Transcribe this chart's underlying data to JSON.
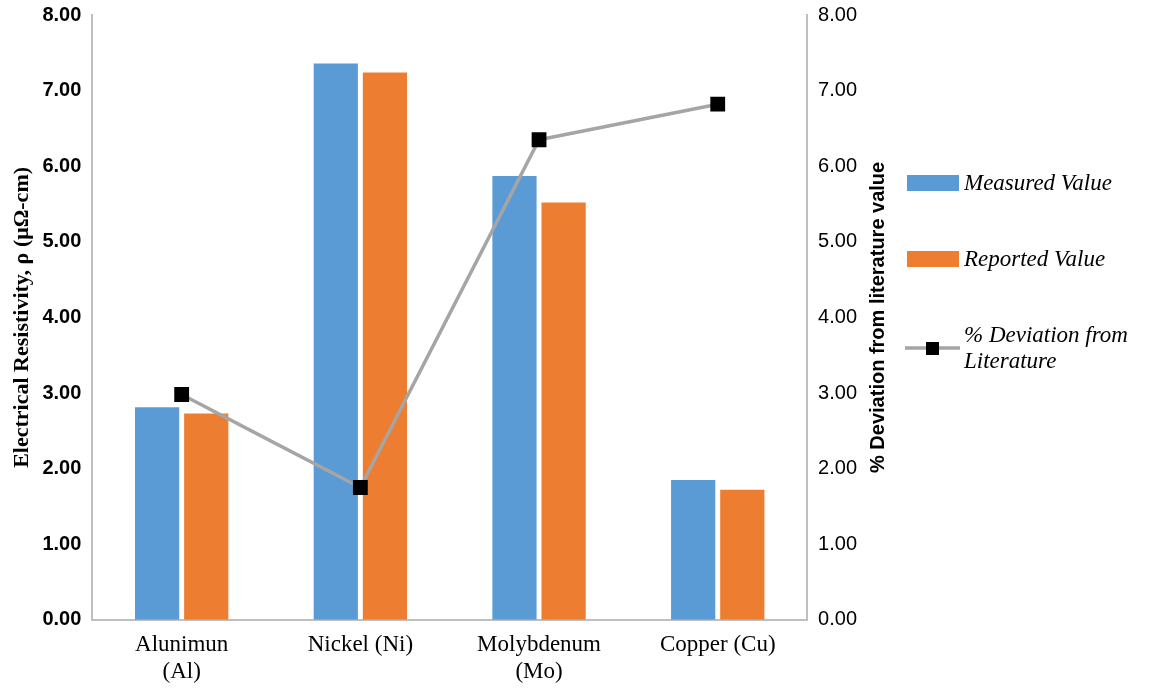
{
  "chart_data": {
    "type": "bar",
    "categories": [
      "Alunimun\n(Al)",
      "Nickel (Ni)",
      "Molybdenum\n(Mo)",
      "Copper (Cu)"
    ],
    "ylabel": "Electrical Resistivity, ρ (μΩ-cm)",
    "y2label": "% Deviation from literature value",
    "ylim": [
      0,
      8
    ],
    "yticks": [
      {
        "value": 0,
        "label": "0.00"
      },
      {
        "value": 1,
        "label": "1.00"
      },
      {
        "value": 2,
        "label": "2.00"
      },
      {
        "value": 3,
        "label": "3.00"
      },
      {
        "value": 4,
        "label": "4.00"
      },
      {
        "value": 5,
        "label": "5.00"
      },
      {
        "value": 6,
        "label": "6.00"
      },
      {
        "value": 7,
        "label": "7.00"
      },
      {
        "value": 8,
        "label": "8.00"
      }
    ],
    "y2lim": [
      0,
      8
    ],
    "y2ticks": [
      {
        "value": 0,
        "label": "0.00"
      },
      {
        "value": 1,
        "label": "1.00"
      },
      {
        "value": 2,
        "label": "2.00"
      },
      {
        "value": 3,
        "label": "3.00"
      },
      {
        "value": 4,
        "label": "4.00"
      },
      {
        "value": 5,
        "label": "5.00"
      },
      {
        "value": 6,
        "label": "6.00"
      },
      {
        "value": 7,
        "label": "7.00"
      },
      {
        "value": 8,
        "label": "8.00"
      }
    ],
    "legend": "right",
    "grid": false,
    "marker": "square",
    "series": [
      {
        "name": "Measured Value",
        "color": "#5b9bd5",
        "values": [
          2.81,
          7.36,
          5.87,
          1.85
        ]
      },
      {
        "name": "Reported Value",
        "color": "#ed7d31",
        "values": [
          2.73,
          7.24,
          5.52,
          1.72
        ]
      },
      {
        "name": "% Deviation from Literature",
        "type": "line",
        "axis": "y2",
        "color": "#a5a5a5",
        "values": [
          2.98,
          1.75,
          6.35,
          6.82
        ]
      }
    ]
  }
}
